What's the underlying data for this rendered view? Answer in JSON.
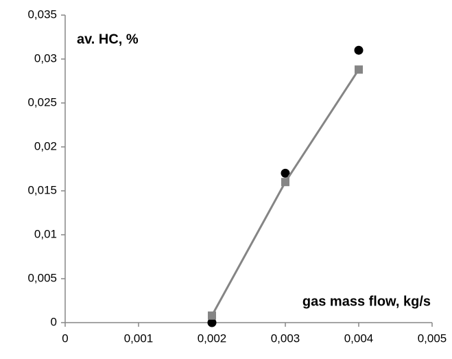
{
  "chart_data": {
    "type": "scatter",
    "y_label": "av. HC, %",
    "x_label": "gas mass flow, kg/s",
    "xlim": [
      0,
      0.005
    ],
    "xticks": [
      0,
      {
        "value": 0.001,
        "label": "0,001"
      },
      {
        "value": 0.002,
        "label": "0,002"
      },
      {
        "value": 0.003,
        "label": "0,003"
      },
      {
        "value": 0.004,
        "label": "0,004"
      },
      {
        "value": 0.005,
        "label": "0,005"
      }
    ],
    "ylim": [
      0,
      0.035
    ],
    "yticks": [
      0,
      {
        "value": 0.005,
        "label": "0,005"
      },
      {
        "value": 0.01,
        "label": "0,01"
      },
      {
        "value": 0.015,
        "label": "0,015"
      },
      {
        "value": 0.02,
        "label": "0,02"
      },
      {
        "value": 0.025,
        "label": "0,025"
      },
      {
        "value": 0.03,
        "label": "0,03"
      },
      {
        "value": 0.035,
        "label": "0,035"
      }
    ],
    "series": [
      {
        "color": "#000000",
        "marker": "circle",
        "line": false,
        "x": [
          0.002,
          0.003,
          0.004
        ],
        "values": [
          0,
          0.017,
          0.031
        ]
      },
      {
        "color": "#858585",
        "marker": "square",
        "line": true,
        "x": [
          0.002,
          0.003,
          0.004
        ],
        "values": [
          0.0008,
          0.016,
          0.0288
        ]
      }
    ]
  }
}
